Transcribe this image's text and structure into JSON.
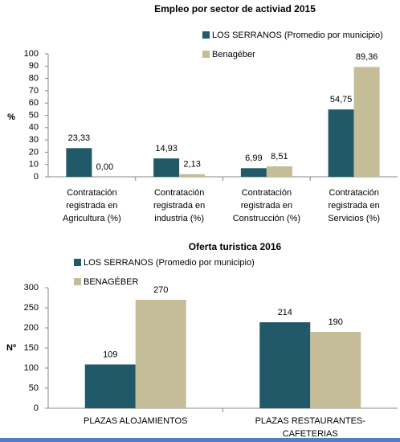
{
  "chart_data": [
    {
      "type": "bar",
      "title": "Empleo por sector de activiad 2015",
      "y_label": "%",
      "categories": [
        "Contratación registrada en Agricultura  (%)",
        "Contratación registrada en industria  (%)",
        "Contratación registrada en Construcción  (%)",
        "Contratación registrada en Servicios  (%)"
      ],
      "series": [
        {
          "name": "LOS SERRANOS (Promedio por municipio)",
          "color": "#215968",
          "values": [
            23.33,
            14.93,
            6.99,
            54.75
          ],
          "value_labels": [
            "23,33",
            "14,93",
            "6,99",
            "54,75"
          ]
        },
        {
          "name": "Benagéber",
          "color": "#c4bd97",
          "values": [
            0,
            2.13,
            8.51,
            89.36
          ],
          "value_labels": [
            "0,00",
            "2,13",
            "8,51",
            "89,36"
          ]
        }
      ],
      "ylim": [
        0,
        100
      ],
      "yticks": [
        0,
        10,
        20,
        30,
        40,
        50,
        60,
        70,
        80,
        90,
        100
      ],
      "legend": "top-right"
    },
    {
      "type": "bar",
      "title": "Oferta turistica 2016",
      "y_label": "Nº",
      "categories": [
        "PLAZAS ALOJAMIENTOS",
        "PLAZAS RESTAURANTES-CAFETERIAS"
      ],
      "series": [
        {
          "name": "LOS SERRANOS (Promedio por municipio)",
          "color": "#215968",
          "values": [
            109,
            214
          ]
        },
        {
          "name": "BENAGÉBER",
          "color": "#c4bd97",
          "values": [
            270,
            190
          ]
        }
      ],
      "ylim": [
        0,
        300
      ],
      "yticks": [
        0,
        50,
        100,
        150,
        200,
        250,
        300
      ],
      "legend": "top-left"
    }
  ]
}
